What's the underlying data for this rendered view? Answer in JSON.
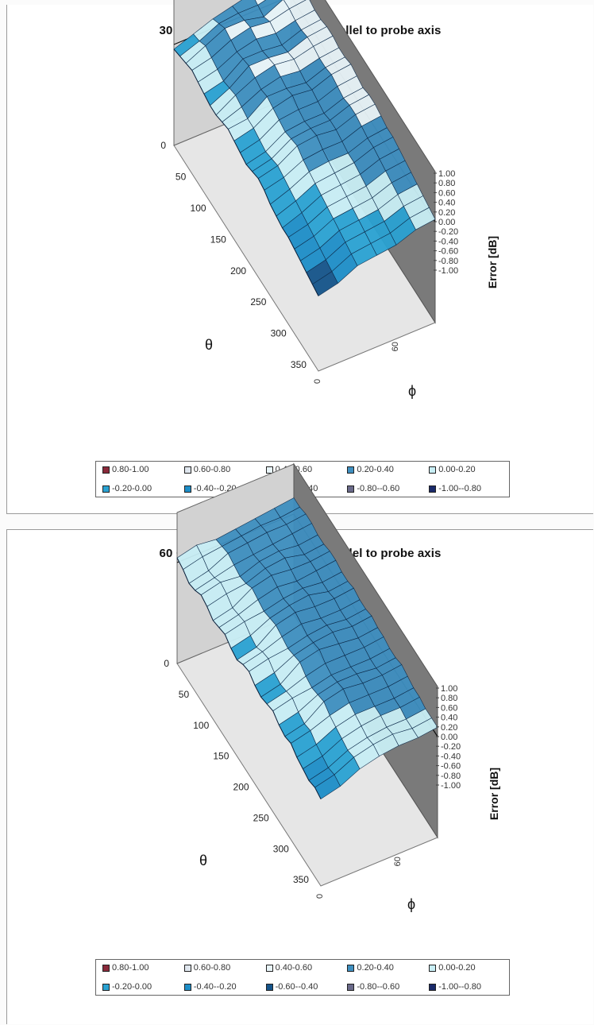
{
  "chart_data": [
    {
      "type": "surface",
      "title": "30 GHz: 3D isotropy. E-field parallel to probe axis",
      "xlabel": "θ",
      "ylabel": "ϕ",
      "zlabel": "Error [dB]",
      "theta_ticks": [
        "0",
        "50",
        "100",
        "150",
        "200",
        "250",
        "300",
        "350"
      ],
      "phi_ticks": [
        "0",
        "60"
      ],
      "z_ticks": [
        "1.00",
        "0.80",
        "0.60",
        "0.40",
        "0.20",
        "0.00",
        "-0.20",
        "-0.40",
        "-0.60",
        "-0.80",
        "-1.00"
      ],
      "zlim": [
        -1.0,
        1.0
      ],
      "theta": [
        0,
        15,
        30,
        45,
        60,
        75,
        90,
        105,
        120,
        135,
        150,
        165,
        180,
        195,
        210,
        225,
        240,
        255,
        270,
        285,
        300,
        315,
        330,
        345,
        360
      ],
      "phi": [
        0,
        15,
        30,
        45,
        60,
        75,
        90
      ],
      "z": [
        [
          -0.1,
          -0.05,
          0.0,
          0.05,
          0.0,
          -0.05,
          -0.1,
          -0.1,
          -0.05,
          0.0,
          -0.05,
          -0.1,
          -0.15,
          -0.1,
          -0.05,
          -0.1,
          -0.2,
          -0.25,
          -0.3,
          -0.3,
          -0.35,
          -0.4,
          -0.45,
          -0.5,
          -0.55
        ],
        [
          0.05,
          0.1,
          0.2,
          0.15,
          0.1,
          0.05,
          0.1,
          0.15,
          0.1,
          0.05,
          0.05,
          0.0,
          -0.05,
          0.0,
          0.05,
          0.0,
          -0.05,
          -0.1,
          -0.15,
          -0.2,
          -0.25,
          -0.3,
          -0.35,
          -0.4,
          -0.45
        ],
        [
          0.2,
          0.3,
          0.4,
          0.35,
          0.3,
          0.35,
          0.4,
          0.35,
          0.3,
          0.35,
          0.3,
          0.25,
          0.2,
          0.25,
          0.3,
          0.2,
          0.15,
          0.1,
          0.05,
          0.0,
          -0.05,
          -0.1,
          -0.15,
          -0.2,
          -0.25
        ],
        [
          0.3,
          0.35,
          0.4,
          0.45,
          0.4,
          0.35,
          0.4,
          0.45,
          0.4,
          0.35,
          0.4,
          0.3,
          0.25,
          0.3,
          0.35,
          0.25,
          0.2,
          0.15,
          0.1,
          0.05,
          0.0,
          -0.05,
          -0.1,
          -0.15,
          -0.2
        ],
        [
          0.4,
          0.35,
          0.3,
          0.4,
          0.35,
          0.3,
          0.35,
          0.4,
          0.35,
          0.3,
          0.35,
          0.3,
          0.25,
          0.3,
          0.3,
          0.25,
          0.2,
          0.2,
          0.15,
          0.1,
          0.05,
          0.0,
          -0.05,
          -0.1,
          -0.15
        ],
        [
          0.45,
          0.45,
          0.5,
          0.5,
          0.45,
          0.45,
          0.5,
          0.5,
          0.45,
          0.45,
          0.5,
          0.45,
          0.4,
          0.45,
          0.45,
          0.4,
          0.35,
          0.35,
          0.3,
          0.25,
          0.2,
          0.15,
          0.1,
          0.05,
          0.0
        ],
        [
          0.5,
          0.5,
          0.55,
          0.55,
          0.5,
          0.5,
          0.55,
          0.55,
          0.5,
          0.5,
          0.55,
          0.5,
          0.45,
          0.5,
          0.5,
          0.45,
          0.4,
          0.4,
          0.35,
          0.3,
          0.25,
          0.2,
          0.15,
          0.1,
          0.05
        ]
      ],
      "legend": [
        {
          "label": "0.80-1.00",
          "color": "#8a2a3a"
        },
        {
          "label": "0.60-0.80",
          "color": "#dfe6ee"
        },
        {
          "label": "0.40-0.60",
          "color": "#e8f4f8"
        },
        {
          "label": "0.20-0.40",
          "color": "#3e8fc0"
        },
        {
          "label": "0.00-0.20",
          "color": "#c8eef5"
        },
        {
          "label": "-0.20-0.00",
          "color": "#2aa2d2"
        },
        {
          "label": "-0.40--0.20",
          "color": "#1d8ec8"
        },
        {
          "label": "-0.60--0.40",
          "color": "#15548a"
        },
        {
          "label": "-0.80--0.60",
          "color": "#6a6a8a"
        },
        {
          "label": "-1.00--0.80",
          "color": "#1a2a6a"
        }
      ]
    },
    {
      "type": "surface",
      "title": "60 GHz: 3D isotropy. E-field parallel to probe axis",
      "xlabel": "θ",
      "ylabel": "ϕ",
      "zlabel": "Error [dB]",
      "theta_ticks": [
        "0",
        "50",
        "100",
        "150",
        "200",
        "250",
        "300",
        "350"
      ],
      "phi_ticks": [
        "0",
        "60"
      ],
      "z_ticks": [
        "1.00",
        "0.80",
        "0.60",
        "0.40",
        "0.20",
        "0.00",
        "-0.20",
        "-0.40",
        "-0.60",
        "-0.80",
        "-1.00"
      ],
      "zlim": [
        -1.0,
        1.0
      ],
      "theta": [
        0,
        15,
        30,
        45,
        60,
        75,
        90,
        105,
        120,
        135,
        150,
        165,
        180,
        195,
        210,
        225,
        240,
        255,
        270,
        285,
        300,
        315,
        330,
        345,
        360
      ],
      "phi": [
        0,
        15,
        30,
        45,
        60,
        75,
        90
      ],
      "z": [
        [
          0.1,
          0.05,
          -0.05,
          0.0,
          0.1,
          0.05,
          -0.05,
          0.0,
          0.05,
          -0.05,
          -0.1,
          0.0,
          0.05,
          -0.05,
          -0.1,
          -0.05,
          0.0,
          -0.1,
          -0.15,
          -0.1,
          -0.2,
          -0.25,
          -0.3,
          -0.25,
          -0.3
        ],
        [
          0.2,
          0.15,
          0.05,
          0.1,
          0.2,
          0.15,
          0.05,
          0.1,
          0.15,
          0.05,
          0.0,
          0.1,
          0.15,
          0.05,
          0.0,
          0.05,
          0.1,
          0.0,
          -0.05,
          0.0,
          -0.1,
          -0.15,
          -0.2,
          -0.15,
          -0.2
        ],
        [
          0.15,
          0.2,
          0.25,
          0.2,
          0.15,
          0.2,
          0.3,
          0.25,
          0.2,
          0.25,
          0.3,
          0.25,
          0.2,
          0.25,
          0.3,
          0.2,
          0.15,
          0.2,
          0.25,
          0.15,
          0.1,
          0.05,
          0.0,
          0.05,
          0.0
        ],
        [
          0.2,
          0.25,
          0.3,
          0.25,
          0.3,
          0.35,
          0.4,
          0.35,
          0.3,
          0.35,
          0.4,
          0.35,
          0.3,
          0.35,
          0.4,
          0.3,
          0.25,
          0.3,
          0.35,
          0.25,
          0.2,
          0.15,
          0.1,
          0.15,
          0.1
        ],
        [
          0.25,
          0.3,
          0.35,
          0.3,
          0.35,
          0.4,
          0.35,
          0.3,
          0.35,
          0.4,
          0.35,
          0.3,
          0.35,
          0.4,
          0.35,
          0.3,
          0.25,
          0.3,
          0.3,
          0.25,
          0.2,
          0.2,
          0.15,
          0.2,
          0.15
        ],
        [
          0.3,
          0.3,
          0.35,
          0.35,
          0.3,
          0.3,
          0.35,
          0.35,
          0.3,
          0.3,
          0.35,
          0.3,
          0.3,
          0.35,
          0.3,
          0.3,
          0.25,
          0.25,
          0.3,
          0.25,
          0.2,
          0.2,
          0.15,
          0.15,
          0.15
        ],
        [
          0.35,
          0.35,
          0.4,
          0.4,
          0.35,
          0.35,
          0.4,
          0.4,
          0.35,
          0.35,
          0.4,
          0.35,
          0.35,
          0.4,
          0.35,
          0.35,
          0.3,
          0.3,
          0.35,
          0.3,
          0.25,
          0.25,
          0.2,
          0.2,
          0.2
        ]
      ],
      "legend": [
        {
          "label": "0.80-1.00",
          "color": "#8a2a3a"
        },
        {
          "label": "0.60-0.80",
          "color": "#dfe6ee"
        },
        {
          "label": "0.40-0.60",
          "color": "#e8f4f8"
        },
        {
          "label": "0.20-0.40",
          "color": "#3e8fc0"
        },
        {
          "label": "0.00-0.20",
          "color": "#c8eef5"
        },
        {
          "label": "-0.20-0.00",
          "color": "#2aa2d2"
        },
        {
          "label": "-0.40--0.20",
          "color": "#1d8ec8"
        },
        {
          "label": "-0.60--0.40",
          "color": "#15548a"
        },
        {
          "label": "-0.80--0.60",
          "color": "#6a6a8a"
        },
        {
          "label": "-1.00--0.80",
          "color": "#1a2a6a"
        }
      ]
    }
  ]
}
